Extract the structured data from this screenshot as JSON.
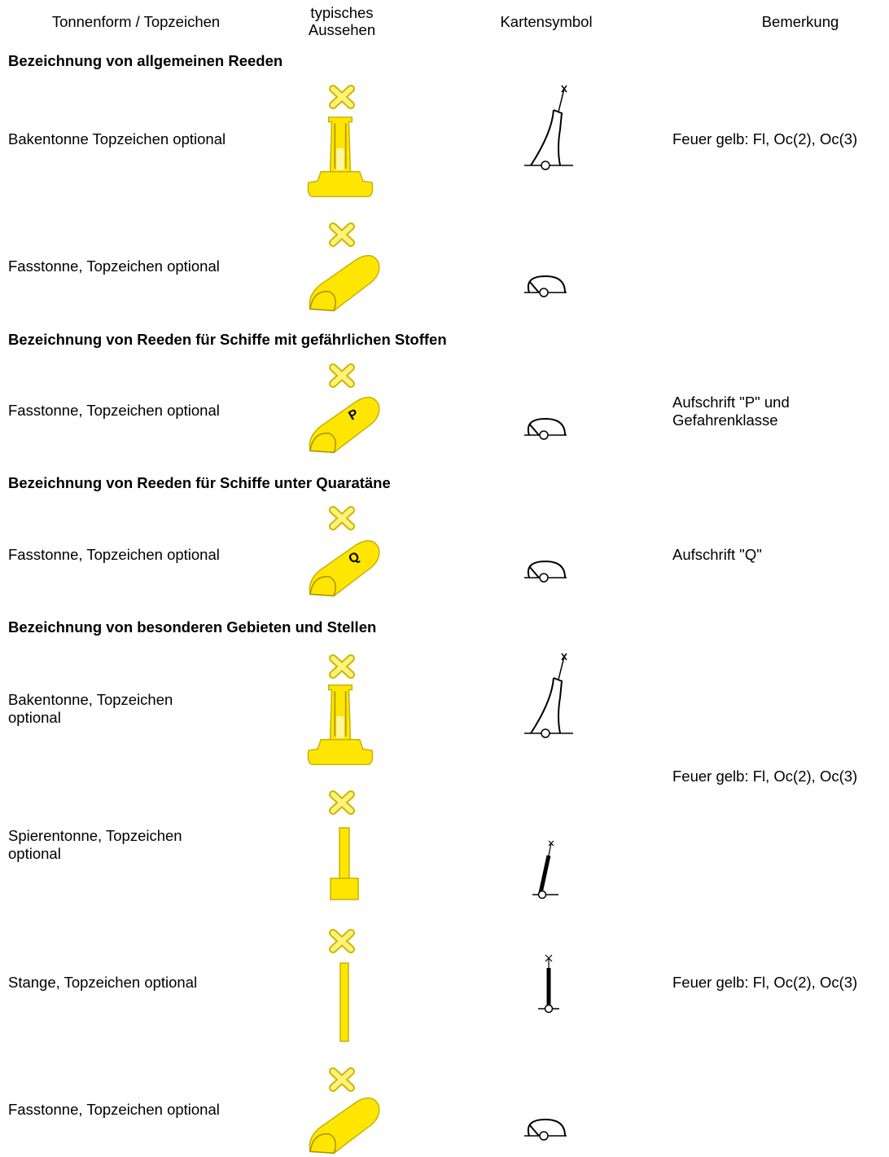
{
  "header": {
    "columns": [
      "Tonnenform / Topzeichen",
      "typisches\nAussehen",
      "Kartensymbol",
      "Bemerkung"
    ]
  },
  "sections": [
    {
      "title": "Bezeichnung von allgemeinen Reeden",
      "rows": [
        {
          "form": "Bakentonne Topzeichen optional",
          "remark": "Feuer gelb: Fl, Oc(2), Oc(3)"
        },
        {
          "form": "Fasstonne, Topzeichen optional"
        }
      ]
    },
    {
      "title": "Bezeichnung von Reeden für Schiffe mit gefährlichen Stoffen",
      "rows": [
        {
          "form": "Fasstonne, Topzeichen optional",
          "remark": "Aufschrift \"P\" und\nGefahrenklasse"
        }
      ]
    },
    {
      "title": "Bezeichnung von Reeden für Schiffe unter Quaratäne",
      "rows": [
        {
          "form": "Fasstonne, Topzeichen optional",
          "remark": "Aufschrift \"Q\""
        }
      ]
    },
    {
      "title": "Bezeichnung von besonderen Gebieten und Stellen",
      "rows": [
        {
          "form": "Bakentonne, Topzeichen\noptional",
          "remark": "Feuer gelb: Fl, Oc(2), Oc(3)"
        },
        {
          "form": "Spierentonne, Topzeichen\noptional"
        },
        {
          "form": "Stange, Topzeichen optional",
          "remark": "Feuer gelb: Fl, Oc(2), Oc(3)"
        },
        {
          "form": "Fasstonne, Topzeichen optional"
        }
      ]
    }
  ]
}
